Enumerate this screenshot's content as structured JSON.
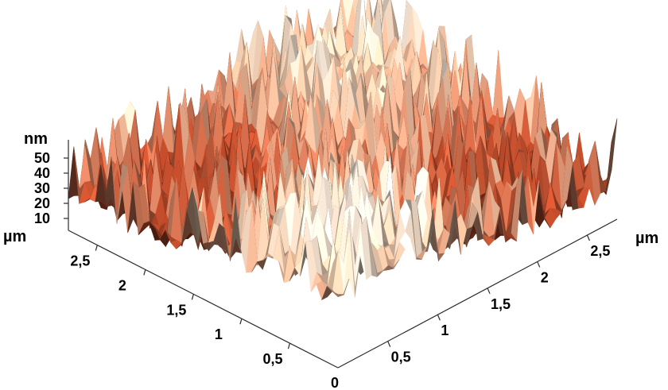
{
  "chart_data": {
    "type": "surface",
    "x_axis": {
      "unit": "µm",
      "ticks": [
        0.5,
        1,
        1.5,
        2,
        2.5
      ],
      "tick_labels": [
        "0,5",
        "1",
        "1,5",
        "2",
        "2,5"
      ],
      "range": [
        0,
        2.8
      ]
    },
    "y_axis": {
      "unit": "µm",
      "ticks": [
        0.5,
        1,
        1.5,
        2,
        2.5
      ],
      "tick_labels": [
        "0,5",
        "1",
        "1,5",
        "2",
        "2,5"
      ],
      "range": [
        0,
        2.8
      ]
    },
    "z_axis": {
      "unit": "nm",
      "ticks": [
        10,
        20,
        30,
        40,
        50
      ],
      "tick_labels": [
        "10",
        "20",
        "30",
        "40",
        "50"
      ],
      "range": [
        0,
        60
      ]
    },
    "origin_label": "0",
    "grid": false,
    "colors": {
      "low": "#4a1408",
      "mid": "#b5492a",
      "high": "#e8c2a4",
      "peak": "#f3e3d3"
    }
  }
}
